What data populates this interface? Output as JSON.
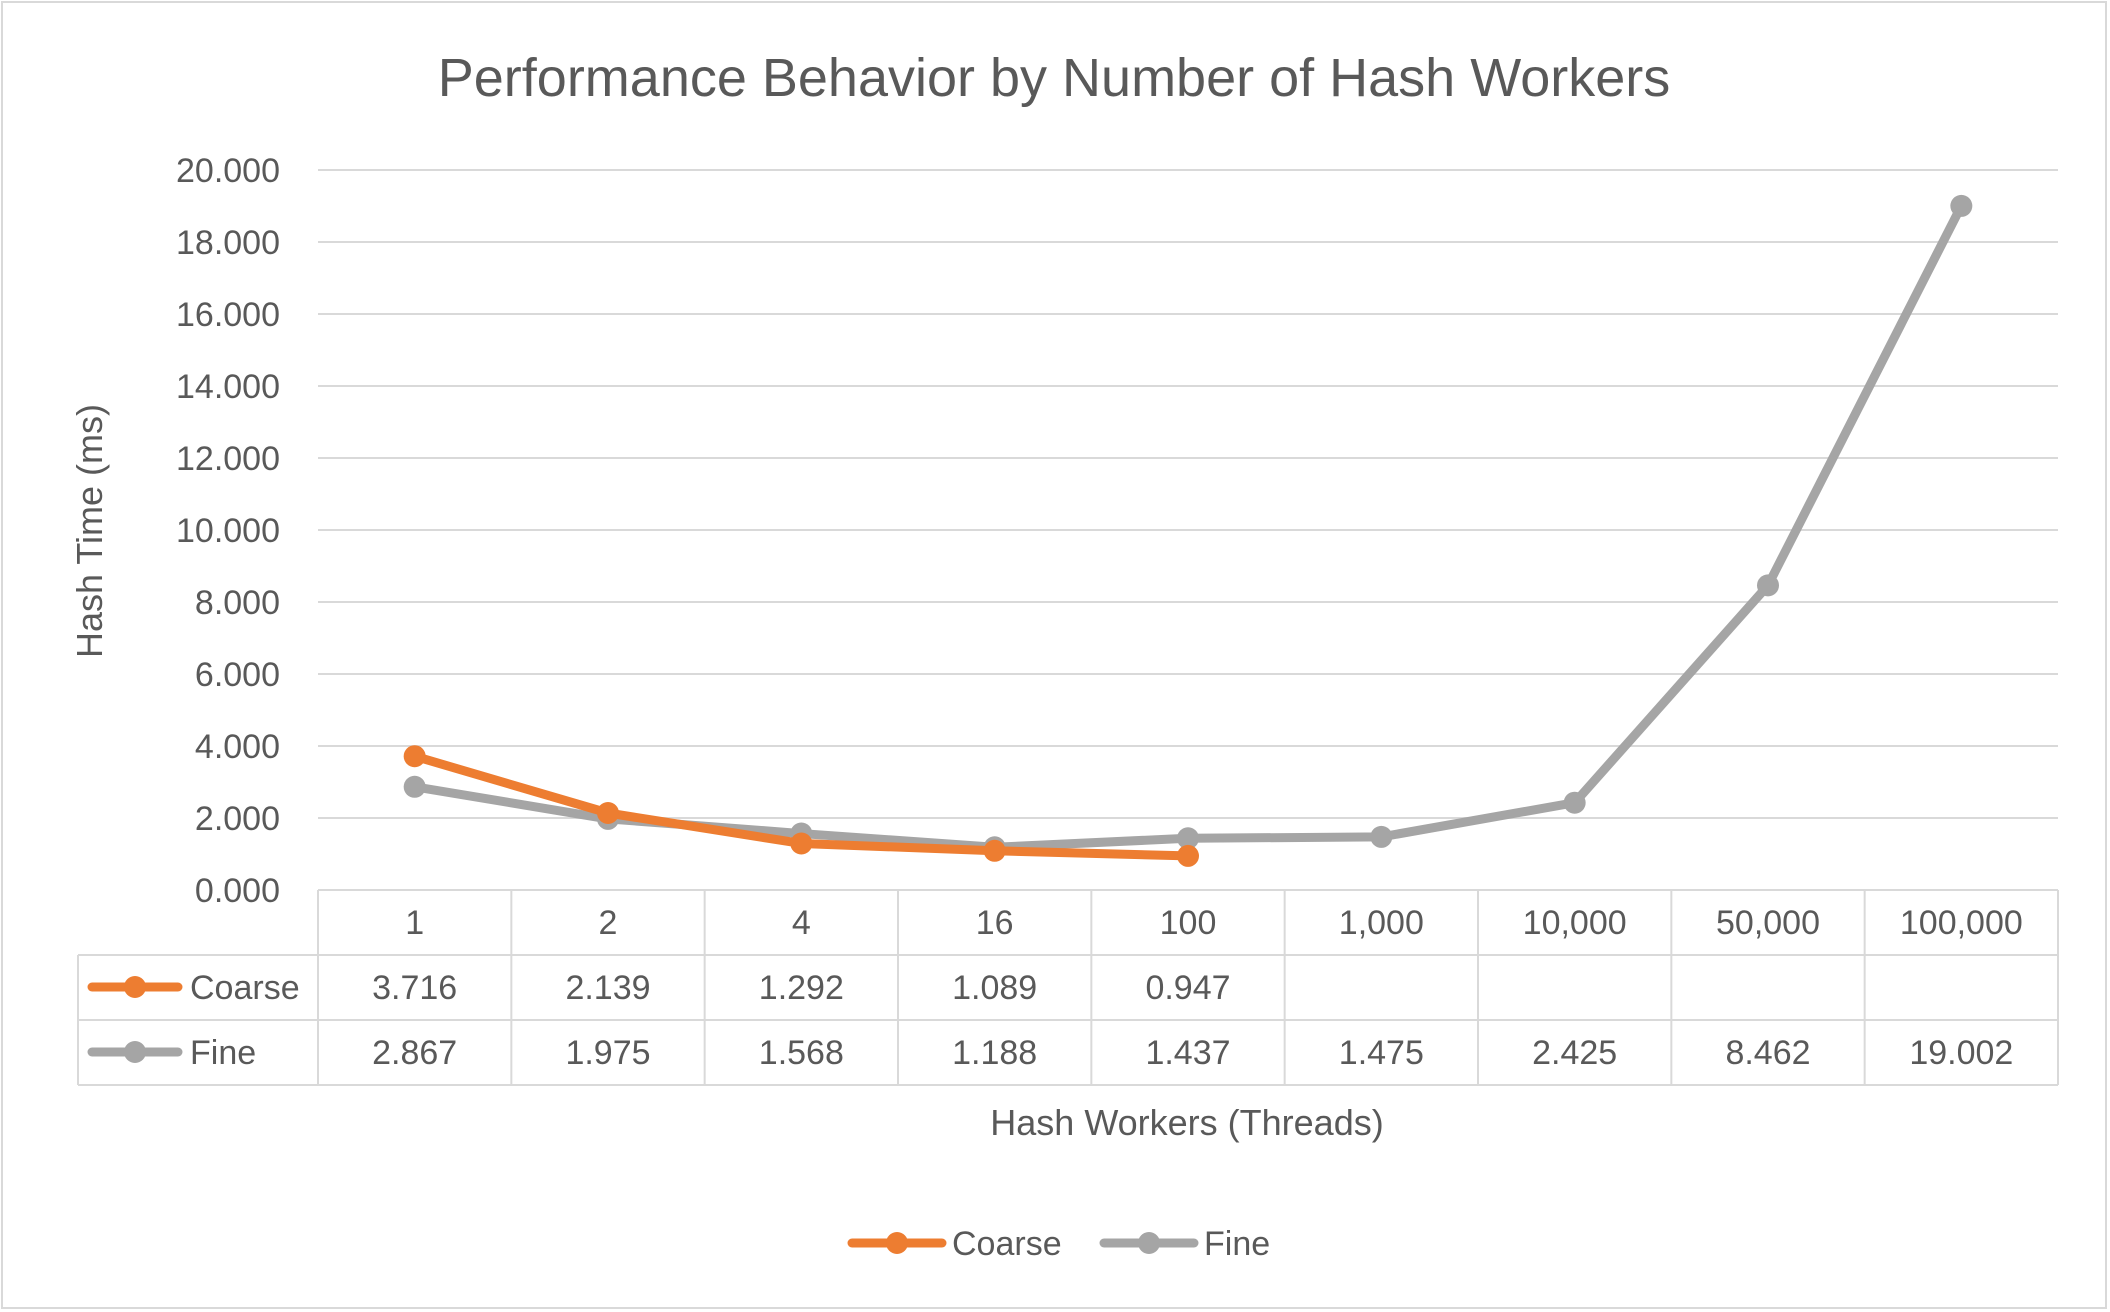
{
  "chart_data": {
    "type": "line",
    "title": "Performance Behavior by Number of Hash Workers",
    "xlabel": "Hash Workers (Threads)",
    "ylabel": "Hash Time (ms)",
    "ylim": [
      0,
      20
    ],
    "y_ticks": [
      "0.000",
      "2.000",
      "4.000",
      "6.000",
      "8.000",
      "10.000",
      "12.000",
      "14.000",
      "16.000",
      "18.000",
      "20.000"
    ],
    "categories": [
      "1",
      "2",
      "4",
      "16",
      "100",
      "1,000",
      "10,000",
      "50,000",
      "100,000"
    ],
    "series": [
      {
        "name": "Coarse",
        "color": "#ed7d31",
        "values": [
          3.716,
          2.139,
          1.292,
          1.089,
          0.947,
          null,
          null,
          null,
          null
        ],
        "labels": [
          "3.716",
          "2.139",
          "1.292",
          "1.089",
          "0.947",
          "",
          "",
          "",
          ""
        ]
      },
      {
        "name": "Fine",
        "color": "#a5a5a5",
        "values": [
          2.867,
          1.975,
          1.568,
          1.188,
          1.437,
          1.475,
          2.425,
          8.462,
          19.002
        ],
        "labels": [
          "2.867",
          "1.975",
          "1.568",
          "1.188",
          "1.437",
          "1.475",
          "2.425",
          "8.462",
          "19.002"
        ]
      }
    ],
    "grid": true,
    "data_table": true,
    "legend_position": "bottom"
  }
}
